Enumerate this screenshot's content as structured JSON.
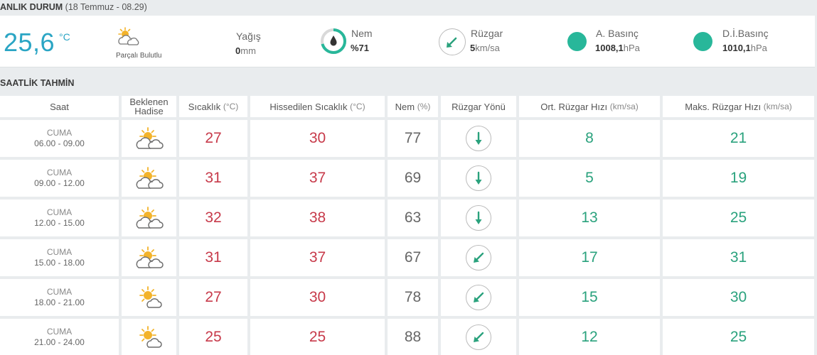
{
  "current": {
    "title_bold": "ANLIK DURUM",
    "title_date": "(18 Temmuz - 08.29)",
    "temperature": "25,6",
    "temperature_unit": "°C",
    "condition": "Parçalı Bulutlu",
    "precip_label": "Yağış",
    "precip_value": "0",
    "precip_unit": "mm",
    "humidity_label": "Nem",
    "humidity_value": "%71",
    "humidity_percent": 71,
    "wind_label": "Rüzgar",
    "wind_value": "5",
    "wind_unit": "km/sa",
    "pressure_label": "A. Basınç",
    "pressure_value": "1008,1",
    "pressure_unit": "hPa",
    "sea_pressure_label": "D.İ.Basınç",
    "sea_pressure_value": "1010,1",
    "sea_pressure_unit": "hPa",
    "accent_color": "#2aa5c4",
    "dot_color": "#28b79a"
  },
  "hourly": {
    "title": "SAATLİK TAHMİN",
    "headers": {
      "time": "Saat",
      "event_line1": "Beklenen",
      "event_line2": "Hadise",
      "temp": "Sıcaklık",
      "temp_unit": "(°C)",
      "feels": "Hissedilen Sıcaklık",
      "feels_unit": "(°C)",
      "humidity": "Nem",
      "humidity_unit": "(%)",
      "wind_dir": "Rüzgar Yönü",
      "wind_avg": "Ort. Rüzgar Hızı",
      "wind_avg_unit": "(km/sa)",
      "wind_max": "Maks. Rüzgar Hızı",
      "wind_max_unit": "(km/sa)"
    },
    "rows": [
      {
        "day": "CUMA",
        "range": "06.00 - 09.00",
        "icon": "partly-cloudy-icon",
        "temp": "27",
        "feels": "30",
        "humidity": "77",
        "wind_dir": "arrow-down-icon",
        "wind_avg": "8",
        "wind_max": "21"
      },
      {
        "day": "CUMA",
        "range": "09.00 - 12.00",
        "icon": "partly-cloudy-icon",
        "temp": "31",
        "feels": "37",
        "humidity": "69",
        "wind_dir": "arrow-down-icon",
        "wind_avg": "5",
        "wind_max": "19"
      },
      {
        "day": "CUMA",
        "range": "12.00 - 15.00",
        "icon": "partly-cloudy-icon",
        "temp": "32",
        "feels": "38",
        "humidity": "63",
        "wind_dir": "arrow-down-icon",
        "wind_avg": "13",
        "wind_max": "25"
      },
      {
        "day": "CUMA",
        "range": "15.00 - 18.00",
        "icon": "partly-cloudy-icon",
        "temp": "31",
        "feels": "37",
        "humidity": "67",
        "wind_dir": "arrow-down-left-icon",
        "wind_avg": "17",
        "wind_max": "31"
      },
      {
        "day": "CUMA",
        "range": "18.00 - 21.00",
        "icon": "mostly-sunny-icon",
        "temp": "27",
        "feels": "30",
        "humidity": "78",
        "wind_dir": "arrow-down-left-icon",
        "wind_avg": "15",
        "wind_max": "30"
      },
      {
        "day": "CUMA",
        "range": "21.00 - 24.00",
        "icon": "mostly-sunny-icon",
        "temp": "25",
        "feels": "25",
        "humidity": "88",
        "wind_dir": "arrow-down-left-icon",
        "wind_avg": "12",
        "wind_max": "25"
      }
    ],
    "colors": {
      "temp": "#c73a4a",
      "humidity": "#666666",
      "wind": "#2aa27d"
    }
  }
}
